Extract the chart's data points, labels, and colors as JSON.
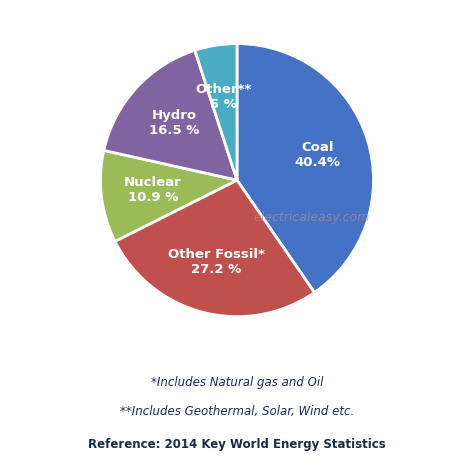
{
  "slices": [
    {
      "label": "Coal\n40.4%",
      "value": 40.4,
      "color": "#4472C4"
    },
    {
      "label": "Other Fossil*\n27.2 %",
      "value": 27.2,
      "color": "#C0504D"
    },
    {
      "label": "Nuclear\n10.9 %",
      "value": 10.9,
      "color": "#9BBB59"
    },
    {
      "label": "Hydro\n16.5 %",
      "value": 16.5,
      "color": "#8064A2"
    },
    {
      "label": "Other**\n5 %",
      "value": 5.0,
      "color": "#4BACC6"
    }
  ],
  "watermark": "electricaleasy.com",
  "footnote1": "*Includes Natural gas and Oil",
  "footnote2": "**Includes Geothermal, Solar, Wind etc.",
  "reference": "Reference: 2014 Key World Energy Statistics",
  "background_color": "#ffffff",
  "text_color": "#1a2a4a"
}
